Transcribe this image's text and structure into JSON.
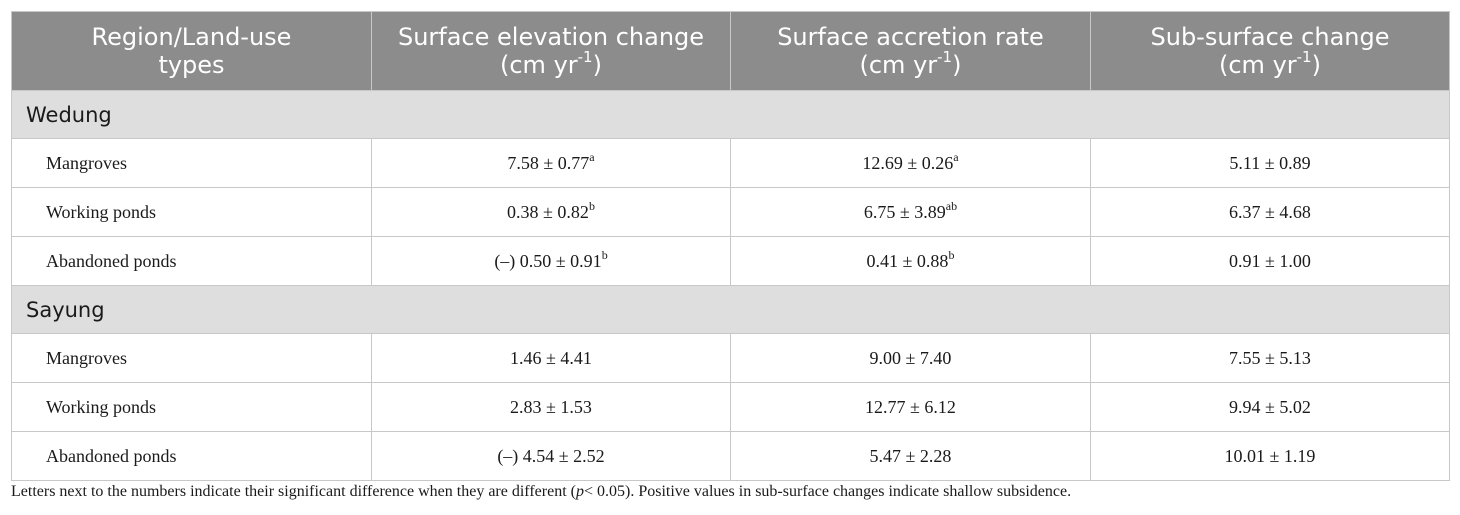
{
  "table": {
    "headers": [
      {
        "line1": "Region/Land-use",
        "line2": "types",
        "unit_base": "",
        "unit_sup": "",
        "unit_end": ""
      },
      {
        "line1": "Surface elevation change",
        "line2": "",
        "unit_base": "(cm yr",
        "unit_sup": "-1",
        "unit_end": ")"
      },
      {
        "line1": "Surface accretion rate",
        "line2": "",
        "unit_base": "(cm yr",
        "unit_sup": "-1",
        "unit_end": ")"
      },
      {
        "line1": "Sub-surface change",
        "line2": "",
        "unit_base": "(cm yr",
        "unit_sup": "-1",
        "unit_end": ")"
      }
    ],
    "groups": [
      {
        "name": "Wedung",
        "rows": [
          {
            "label": "Mangroves",
            "elev": {
              "v": "7.58 ± 0.77",
              "s": "a"
            },
            "accr": {
              "v": "12.69 ± 0.26",
              "s": "a"
            },
            "sub": {
              "v": "5.11 ± 0.89",
              "s": ""
            }
          },
          {
            "label": "Working ponds",
            "elev": {
              "v": "0.38 ± 0.82",
              "s": "b"
            },
            "accr": {
              "v": "6.75 ± 3.89",
              "s": "ab"
            },
            "sub": {
              "v": "6.37 ± 4.68",
              "s": ""
            }
          },
          {
            "label": "Abandoned ponds",
            "elev": {
              "v": "(–) 0.50 ± 0.91",
              "s": "b"
            },
            "accr": {
              "v": "0.41 ± 0.88",
              "s": "b"
            },
            "sub": {
              "v": "0.91 ± 1.00",
              "s": ""
            }
          }
        ]
      },
      {
        "name": "Sayung",
        "rows": [
          {
            "label": "Mangroves",
            "elev": {
              "v": "1.46 ± 4.41",
              "s": ""
            },
            "accr": {
              "v": "9.00 ± 7.40",
              "s": ""
            },
            "sub": {
              "v": "7.55 ± 5.13",
              "s": ""
            }
          },
          {
            "label": "Working ponds",
            "elev": {
              "v": "2.83 ± 1.53",
              "s": ""
            },
            "accr": {
              "v": "12.77 ± 6.12",
              "s": ""
            },
            "sub": {
              "v": "9.94 ± 5.02",
              "s": ""
            }
          },
          {
            "label": "Abandoned ponds",
            "elev": {
              "v": "(–) 4.54 ± 2.52",
              "s": ""
            },
            "accr": {
              "v": "5.47 ± 2.28",
              "s": ""
            },
            "sub": {
              "v": "10.01 ± 1.19",
              "s": ""
            }
          }
        ]
      }
    ]
  },
  "footnote": {
    "before": "Letters next to the numbers indicate their significant difference when they are different (",
    "p": "p",
    "after": "< 0.05). Positive values in sub-surface changes indicate shallow subsidence."
  },
  "colors": {
    "header_bg": "#8c8c8c",
    "group_bg": "#dedede",
    "border": "#c8c8c8"
  }
}
